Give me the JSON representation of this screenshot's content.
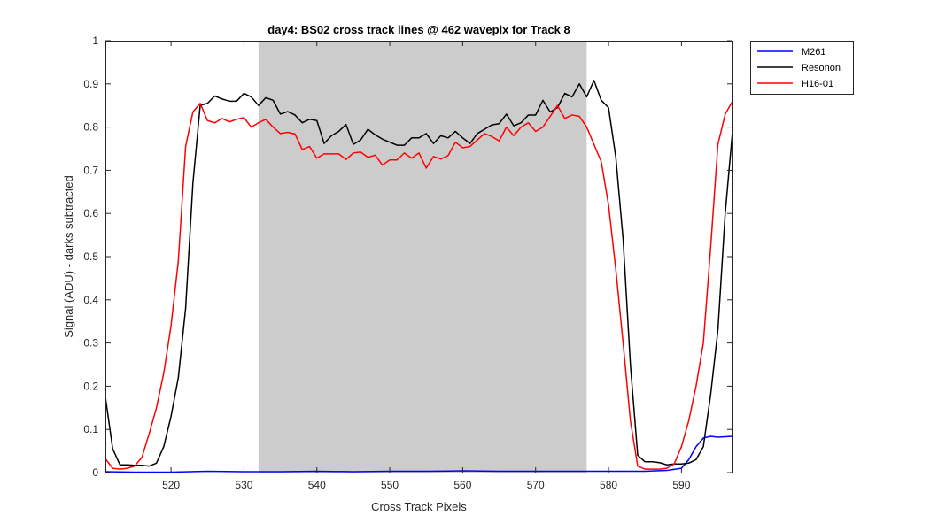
{
  "chart_data": {
    "type": "line",
    "title": "day4: BS02  cross track lines @ 462 wavepix for Track 8",
    "xlabel": "Cross Track Pixels",
    "ylabel": "Signal (ADU) - darks subtracted",
    "xlim": [
      511,
      597
    ],
    "ylim": [
      0,
      1
    ],
    "xticks": [
      520,
      530,
      540,
      550,
      560,
      570,
      580,
      590
    ],
    "yticks": [
      0,
      0.1,
      0.2,
      0.3,
      0.4,
      0.5,
      0.6,
      0.7,
      0.8,
      0.9,
      1
    ],
    "xtick_labels": [
      "520",
      "530",
      "540",
      "550",
      "560",
      "570",
      "580",
      "590"
    ],
    "ytick_labels": [
      "0",
      "0.1",
      "0.2",
      "0.3",
      "0.4",
      "0.5",
      "0.6",
      "0.7",
      "0.8",
      "0.9",
      "1"
    ],
    "grid": false,
    "legend_position": "outside-top-right",
    "shaded_region": {
      "x0": 532,
      "x1": 577,
      "color": "#cccccc"
    },
    "series": [
      {
        "name": "M261",
        "color": "#0000ff",
        "x": [
          511,
          515,
          520,
          525,
          530,
          535,
          540,
          545,
          550,
          555,
          560,
          565,
          570,
          575,
          580,
          585,
          588,
          590,
          591,
          592,
          593,
          594,
          595,
          597
        ],
        "y": [
          0.002,
          0.001,
          0.001,
          0.003,
          0.002,
          0.002,
          0.003,
          0.002,
          0.003,
          0.003,
          0.004,
          0.003,
          0.003,
          0.003,
          0.003,
          0.003,
          0.005,
          0.01,
          0.03,
          0.06,
          0.08,
          0.084,
          0.082,
          0.084
        ]
      },
      {
        "name": "Resonon",
        "color": "#000000",
        "x": [
          511,
          512,
          513,
          514,
          515,
          516,
          517,
          518,
          519,
          520,
          521,
          522,
          523,
          524,
          525,
          526,
          527,
          528,
          529,
          530,
          531,
          532,
          533,
          534,
          535,
          536,
          537,
          538,
          539,
          540,
          541,
          542,
          543,
          544,
          545,
          546,
          547,
          548,
          549,
          550,
          551,
          552,
          553,
          554,
          555,
          556,
          557,
          558,
          559,
          560,
          561,
          562,
          563,
          564,
          565,
          566,
          567,
          568,
          569,
          570,
          571,
          572,
          573,
          574,
          575,
          576,
          577,
          578,
          579,
          580,
          581,
          582,
          583,
          584,
          585,
          586,
          587,
          588,
          589,
          590,
          591,
          592,
          593,
          594,
          595,
          596,
          597
        ],
        "y": [
          0.175,
          0.055,
          0.018,
          0.018,
          0.017,
          0.017,
          0.015,
          0.022,
          0.06,
          0.13,
          0.22,
          0.38,
          0.67,
          0.85,
          0.855,
          0.872,
          0.865,
          0.86,
          0.86,
          0.878,
          0.87,
          0.85,
          0.868,
          0.862,
          0.83,
          0.836,
          0.828,
          0.81,
          0.818,
          0.815,
          0.762,
          0.78,
          0.79,
          0.806,
          0.76,
          0.77,
          0.795,
          0.782,
          0.772,
          0.765,
          0.758,
          0.758,
          0.775,
          0.775,
          0.785,
          0.762,
          0.78,
          0.775,
          0.79,
          0.775,
          0.762,
          0.785,
          0.795,
          0.805,
          0.808,
          0.83,
          0.803,
          0.81,
          0.828,
          0.828,
          0.862,
          0.835,
          0.845,
          0.878,
          0.87,
          0.9,
          0.87,
          0.908,
          0.862,
          0.845,
          0.73,
          0.54,
          0.25,
          0.04,
          0.025,
          0.025,
          0.023,
          0.018,
          0.02,
          0.02,
          0.022,
          0.03,
          0.06,
          0.18,
          0.33,
          0.6,
          0.79
        ]
      },
      {
        "name": "H16-01",
        "color": "#ff0000",
        "x": [
          511,
          512,
          513,
          514,
          515,
          516,
          517,
          518,
          519,
          520,
          521,
          522,
          523,
          524,
          525,
          526,
          527,
          528,
          529,
          530,
          531,
          532,
          533,
          534,
          535,
          536,
          537,
          538,
          539,
          540,
          541,
          542,
          543,
          544,
          545,
          546,
          547,
          548,
          549,
          550,
          551,
          552,
          553,
          554,
          555,
          556,
          557,
          558,
          559,
          560,
          561,
          562,
          563,
          564,
          565,
          566,
          567,
          568,
          569,
          570,
          571,
          572,
          573,
          574,
          575,
          576,
          577,
          578,
          579,
          580,
          581,
          582,
          583,
          584,
          585,
          586,
          587,
          588,
          589,
          590,
          591,
          592,
          593,
          594,
          595,
          596,
          597
        ],
        "y": [
          0.032,
          0.01,
          0.008,
          0.01,
          0.015,
          0.035,
          0.09,
          0.15,
          0.23,
          0.34,
          0.49,
          0.755,
          0.835,
          0.855,
          0.815,
          0.81,
          0.82,
          0.812,
          0.818,
          0.822,
          0.8,
          0.81,
          0.818,
          0.8,
          0.785,
          0.788,
          0.784,
          0.748,
          0.755,
          0.728,
          0.738,
          0.738,
          0.738,
          0.725,
          0.74,
          0.742,
          0.73,
          0.735,
          0.712,
          0.724,
          0.724,
          0.74,
          0.728,
          0.74,
          0.705,
          0.732,
          0.726,
          0.734,
          0.765,
          0.752,
          0.755,
          0.77,
          0.785,
          0.778,
          0.768,
          0.8,
          0.78,
          0.8,
          0.81,
          0.79,
          0.8,
          0.825,
          0.85,
          0.82,
          0.828,
          0.825,
          0.8,
          0.76,
          0.72,
          0.62,
          0.47,
          0.3,
          0.12,
          0.015,
          0.008,
          0.008,
          0.008,
          0.01,
          0.02,
          0.06,
          0.12,
          0.2,
          0.3,
          0.52,
          0.76,
          0.83,
          0.86
        ]
      }
    ]
  }
}
